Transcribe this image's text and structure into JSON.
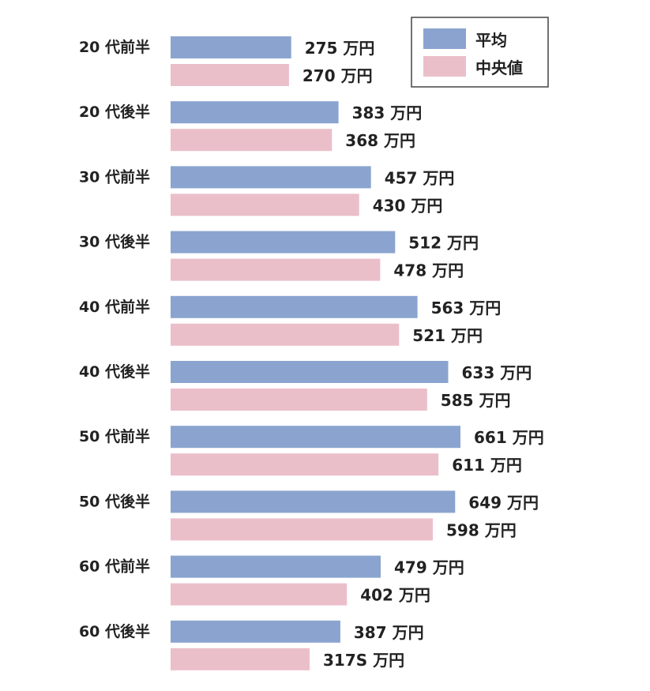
{
  "chart_data": {
    "type": "bar",
    "orientation": "horizontal",
    "categories": [
      "20 代前半",
      "20 代後半",
      "30 代前半",
      "30 代後半",
      "40 代前半",
      "40 代後半",
      "50 代前半",
      "50 代後半",
      "60 代前半",
      "60 代後半"
    ],
    "series": [
      {
        "name": "平均",
        "color": "#8aa4cf",
        "values": [
          275,
          383,
          457,
          512,
          563,
          633,
          661,
          649,
          479,
          387
        ],
        "labels": [
          "275 万円",
          "383 万円",
          "457 万円",
          "512 万円",
          "563 万円",
          "633 万円",
          "661 万円",
          "649 万円",
          "479 万円",
          "387 万円"
        ]
      },
      {
        "name": "中央値",
        "color": "#ebbfca",
        "values": [
          270,
          368,
          430,
          478,
          521,
          585,
          611,
          598,
          402,
          317
        ],
        "labels": [
          "270 万円",
          "368 万円",
          "430 万円",
          "478 万円",
          "521 万円",
          "585 万円",
          "611 万円",
          "598 万円",
          "402 万円",
          "317S 万円"
        ]
      }
    ],
    "xlim": [
      0,
      700
    ],
    "grid": false,
    "legend_position": "top-right"
  }
}
